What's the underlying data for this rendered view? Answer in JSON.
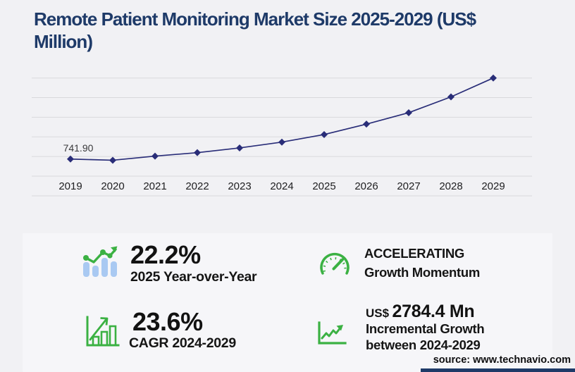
{
  "title": "Remote Patient Monitoring Market Size 2025-2029 (US$ Million)",
  "source": "source: www.technavio.com",
  "colors": {
    "title_navy": "#1e3a68",
    "line_navy": "#292d78",
    "gridline_gray": "#d9d9dc",
    "accent_green": "#3bb143",
    "bar_light_blue": "#a9c9f2",
    "axis_text": "#202022",
    "data_label_text": "#3a3a3c"
  },
  "chart_data": {
    "type": "line",
    "title": "Remote Patient Monitoring Market Size 2025-2029 (US$ Million)",
    "x": [
      "2019",
      "2020",
      "2021",
      "2022",
      "2023",
      "2024",
      "2025",
      "2026",
      "2027",
      "2028",
      "2029"
    ],
    "series": [
      {
        "name": "Market size (US$ Million)",
        "values": [
          741.9,
          690,
          870,
          1020,
          1225,
          1478.2,
          1806.4,
          2260,
          2755,
          3443,
          4262.6
        ]
      }
    ],
    "data_labels": [
      {
        "x": "2019",
        "text": "741.90"
      }
    ],
    "xlabel": "",
    "ylabel": "",
    "ylim": [
      0,
      4262.6
    ],
    "gridlines": 6,
    "grid": "horizontal",
    "legend": "none",
    "marker": "diamond",
    "line_color": "#292d78"
  },
  "stats": {
    "yoy": {
      "value": "22.2%",
      "label": "2025 Year-over-Year"
    },
    "momentum": {
      "line1": "ACCELERATING",
      "line2": "Growth Momentum"
    },
    "cagr": {
      "value": "23.6%",
      "label": "CAGR 2024-2029"
    },
    "incremental": {
      "currency": "US$",
      "value": "2784.4 Mn",
      "label_line1": "Incremental Growth",
      "label_line2": "between 2024-2029"
    }
  }
}
